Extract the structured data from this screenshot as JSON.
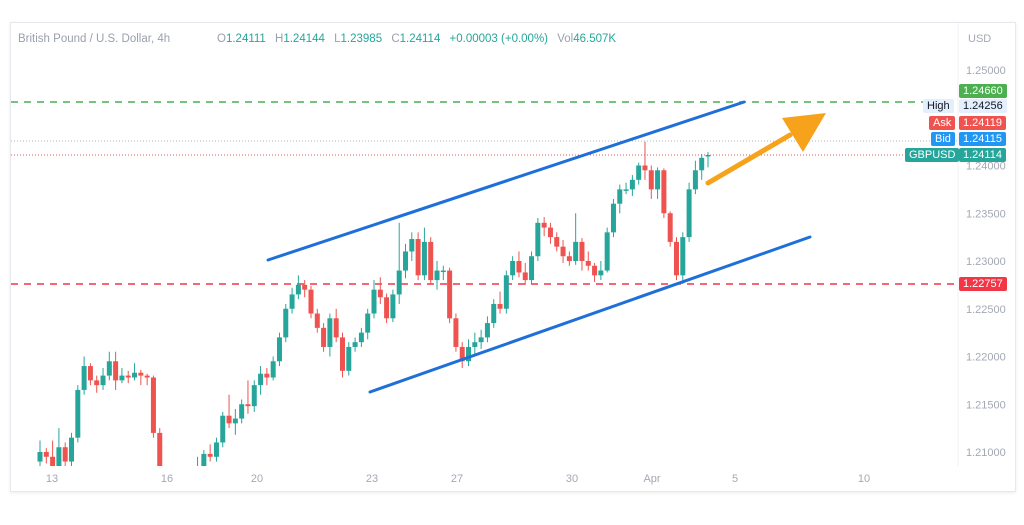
{
  "header": {
    "symbol_title": "British Pound / U.S. Dollar, 4h",
    "open_label": "O",
    "open": "1.24111",
    "high_label": "H",
    "high": "1.24144",
    "low_label": "L",
    "low": "1.23985",
    "close_label": "C",
    "close": "1.24114",
    "change": "+0.00003 (+0.00%)",
    "vol_label": "Vol",
    "volume": "46.507K"
  },
  "price_axis": {
    "currency": "USD",
    "ticks": [
      "1.25000",
      "1.24000",
      "1.23500",
      "1.23000",
      "1.22500",
      "1.22000",
      "1.21500",
      "1.21000"
    ]
  },
  "time_axis": {
    "ticks": [
      "13",
      "16",
      "20",
      "23",
      "27",
      "30",
      "Apr",
      "5",
      "10"
    ]
  },
  "price_tags": {
    "green_level": {
      "value": "1.24660",
      "color": "#4caf50"
    },
    "high": {
      "label": "High",
      "value": "1.24256"
    },
    "ask": {
      "label": "Ask",
      "value": "1.24119",
      "color": "#ef5350"
    },
    "bid": {
      "label": "Bid",
      "value": "1.24115",
      "color": "#2196f3"
    },
    "last": {
      "label": "GBPUSD",
      "value": "1.24114",
      "color": "#26a69a"
    },
    "red_level": {
      "value": "1.22757",
      "color": "#f23645"
    }
  },
  "colors": {
    "up": "#26a69a",
    "down": "#ef5350",
    "channel": "#1e6fd9",
    "arrow": "#f7a21b"
  },
  "chart_data": {
    "type": "candlestick",
    "title": "British Pound / U.S. Dollar, 4h",
    "ylabel": "USD",
    "ylim": [
      1.2081,
      1.2535
    ],
    "horizontal_levels": [
      1.2466,
      1.22757
    ],
    "candles_ohlc": [
      [
        1.209,
        1.2112,
        1.2085,
        1.21
      ],
      [
        1.21,
        1.2104,
        1.2088,
        1.2095
      ],
      [
        1.2095,
        1.2112,
        1.208,
        1.2085
      ],
      [
        1.2085,
        1.2125,
        1.2082,
        1.2105
      ],
      [
        1.2105,
        1.211,
        1.2085,
        1.209
      ],
      [
        1.209,
        1.212,
        1.2085,
        1.2115
      ],
      [
        1.2115,
        1.217,
        1.211,
        1.2165
      ],
      [
        1.2165,
        1.22,
        1.216,
        1.219
      ],
      [
        1.219,
        1.2193,
        1.217,
        1.2175
      ],
      [
        1.2175,
        1.218,
        1.2162,
        1.217
      ],
      [
        1.217,
        1.2188,
        1.2165,
        1.218
      ],
      [
        1.218,
        1.2205,
        1.2175,
        1.2195
      ],
      [
        1.2195,
        1.2205,
        1.2165,
        1.2175
      ],
      [
        1.2175,
        1.2188,
        1.2172,
        1.218
      ],
      [
        1.218,
        1.2185,
        1.2172,
        1.2178
      ],
      [
        1.2178,
        1.2193,
        1.2175,
        1.2183
      ],
      [
        1.2183,
        1.2186,
        1.217,
        1.218
      ],
      [
        1.218,
        1.2182,
        1.217,
        1.2178
      ],
      [
        1.2178,
        1.218,
        1.2115,
        1.212
      ],
      [
        1.212,
        1.2125,
        1.206,
        1.207
      ],
      [
        1.207,
        1.2078,
        1.2055,
        1.206
      ],
      [
        1.206,
        1.2065,
        1.2045,
        1.205
      ],
      [
        1.205,
        1.2058,
        1.2035,
        1.204
      ],
      [
        1.204,
        1.2085,
        1.2035,
        1.2045
      ],
      [
        1.2045,
        1.2072,
        1.204,
        1.206
      ],
      [
        1.206,
        1.2095,
        1.2055,
        1.2085
      ],
      [
        1.2085,
        1.2102,
        1.208,
        1.2098
      ],
      [
        1.2098,
        1.2108,
        1.209,
        1.2095
      ],
      [
        1.2095,
        1.2115,
        1.209,
        1.211
      ],
      [
        1.211,
        1.2142,
        1.2105,
        1.2138
      ],
      [
        1.2138,
        1.216,
        1.2125,
        1.213
      ],
      [
        1.213,
        1.2145,
        1.2118,
        1.2135
      ],
      [
        1.2135,
        1.2155,
        1.213,
        1.215
      ],
      [
        1.215,
        1.2175,
        1.214,
        1.2148
      ],
      [
        1.2148,
        1.2175,
        1.2142,
        1.217
      ],
      [
        1.217,
        1.219,
        1.216,
        1.2182
      ],
      [
        1.2182,
        1.2188,
        1.217,
        1.2178
      ],
      [
        1.2178,
        1.22,
        1.2175,
        1.2195
      ],
      [
        1.2195,
        1.2225,
        1.219,
        1.222
      ],
      [
        1.222,
        1.2255,
        1.2215,
        1.225
      ],
      [
        1.225,
        1.2272,
        1.2245,
        1.2265
      ],
      [
        1.2265,
        1.2285,
        1.226,
        1.2275
      ],
      [
        1.2275,
        1.228,
        1.2262,
        1.227
      ],
      [
        1.227,
        1.2274,
        1.224,
        1.2245
      ],
      [
        1.2245,
        1.225,
        1.2225,
        1.223
      ],
      [
        1.223,
        1.2235,
        1.2205,
        1.221
      ],
      [
        1.221,
        1.2245,
        1.22,
        1.224
      ],
      [
        1.224,
        1.225,
        1.2215,
        1.222
      ],
      [
        1.222,
        1.2225,
        1.2178,
        1.2185
      ],
      [
        1.2185,
        1.2215,
        1.218,
        1.221
      ],
      [
        1.221,
        1.222,
        1.2205,
        1.2215
      ],
      [
        1.2215,
        1.223,
        1.221,
        1.2225
      ],
      [
        1.2225,
        1.225,
        1.2218,
        1.2245
      ],
      [
        1.2245,
        1.228,
        1.224,
        1.227
      ],
      [
        1.227,
        1.2283,
        1.2255,
        1.2262
      ],
      [
        1.2262,
        1.2266,
        1.2235,
        1.224
      ],
      [
        1.224,
        1.227,
        1.2236,
        1.2265
      ],
      [
        1.2265,
        1.234,
        1.2255,
        1.229
      ],
      [
        1.229,
        1.2318,
        1.2282,
        1.231
      ],
      [
        1.231,
        1.233,
        1.23,
        1.2323
      ],
      [
        1.2323,
        1.233,
        1.228,
        1.2285
      ],
      [
        1.2285,
        1.2335,
        1.228,
        1.232
      ],
      [
        1.232,
        1.2325,
        1.2275,
        1.228
      ],
      [
        1.228,
        1.23,
        1.227,
        1.229
      ],
      [
        1.229,
        1.2295,
        1.228,
        1.229
      ],
      [
        1.229,
        1.2293,
        1.2235,
        1.224
      ],
      [
        1.224,
        1.2245,
        1.2205,
        1.221
      ],
      [
        1.221,
        1.2215,
        1.2188,
        1.2195
      ],
      [
        1.2195,
        1.2218,
        1.219,
        1.221
      ],
      [
        1.221,
        1.2225,
        1.2202,
        1.2215
      ],
      [
        1.2215,
        1.2228,
        1.2208,
        1.222
      ],
      [
        1.222,
        1.2242,
        1.2215,
        1.2235
      ],
      [
        1.2235,
        1.226,
        1.223,
        1.2255
      ],
      [
        1.2255,
        1.2268,
        1.2245,
        1.225
      ],
      [
        1.225,
        1.229,
        1.2245,
        1.2285
      ],
      [
        1.2285,
        1.2305,
        1.228,
        1.23
      ],
      [
        1.23,
        1.231,
        1.2283,
        1.2288
      ],
      [
        1.2288,
        1.2298,
        1.2275,
        1.228
      ],
      [
        1.228,
        1.231,
        1.2276,
        1.2305
      ],
      [
        1.2305,
        1.2345,
        1.23,
        1.234
      ],
      [
        1.234,
        1.2346,
        1.2326,
        1.2335
      ],
      [
        1.2335,
        1.234,
        1.2318,
        1.2325
      ],
      [
        1.2325,
        1.233,
        1.231,
        1.2315
      ],
      [
        1.2315,
        1.2322,
        1.2298,
        1.2305
      ],
      [
        1.2305,
        1.231,
        1.2295,
        1.23
      ],
      [
        1.23,
        1.235,
        1.2296,
        1.232
      ],
      [
        1.232,
        1.2324,
        1.229,
        1.23
      ],
      [
        1.23,
        1.231,
        1.229,
        1.2295
      ],
      [
        1.2295,
        1.2298,
        1.2278,
        1.2285
      ],
      [
        1.2285,
        1.23,
        1.228,
        1.229
      ],
      [
        1.229,
        1.2335,
        1.2288,
        1.233
      ],
      [
        1.233,
        1.2365,
        1.2325,
        1.236
      ],
      [
        1.236,
        1.238,
        1.235,
        1.2375
      ],
      [
        1.2375,
        1.2382,
        1.237,
        1.2375
      ],
      [
        1.2375,
        1.239,
        1.2368,
        1.2385
      ],
      [
        1.2385,
        1.2403,
        1.238,
        1.24
      ],
      [
        1.24,
        1.2425,
        1.2385,
        1.2395
      ],
      [
        1.2395,
        1.24,
        1.2365,
        1.2375
      ],
      [
        1.2375,
        1.2398,
        1.2365,
        1.2395
      ],
      [
        1.2395,
        1.2397,
        1.2345,
        1.235
      ],
      [
        1.235,
        1.2352,
        1.2315,
        1.232
      ],
      [
        1.232,
        1.2325,
        1.228,
        1.2285
      ],
      [
        1.2285,
        1.233,
        1.2276,
        1.2325
      ],
      [
        1.2325,
        1.2382,
        1.232,
        1.2375
      ],
      [
        1.2375,
        1.2405,
        1.237,
        1.2395
      ],
      [
        1.2395,
        1.2412,
        1.2385,
        1.2408
      ],
      [
        1.2411,
        1.2414,
        1.2398,
        1.2411
      ]
    ]
  }
}
